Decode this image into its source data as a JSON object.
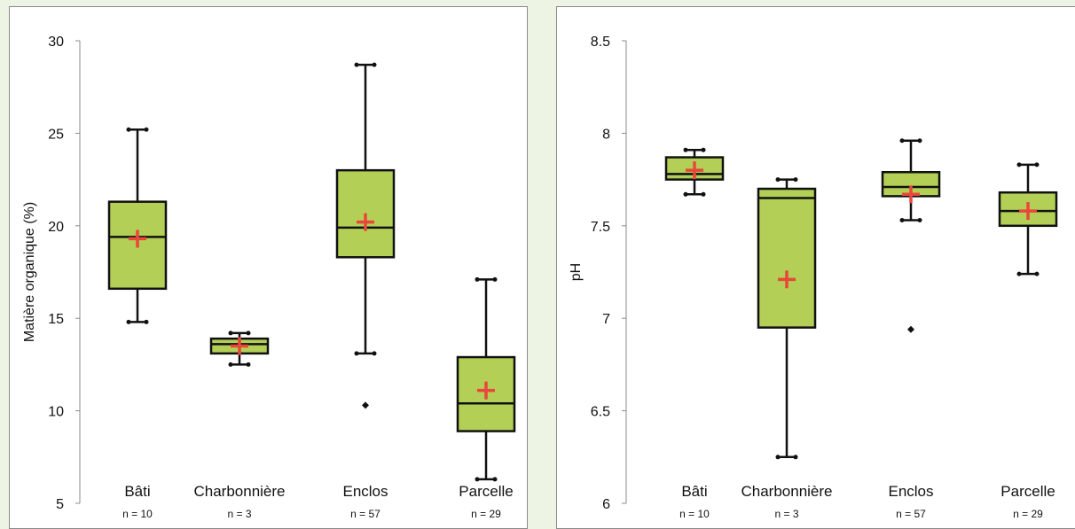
{
  "chart_data": [
    {
      "type": "box",
      "ylabel": "Matière organique (%)",
      "ylim": [
        5,
        30
      ],
      "yticks": [
        5,
        10,
        15,
        20,
        25,
        30
      ],
      "categories": [
        "Bâti",
        "Charbonnière",
        "Enclos",
        "Parcelle"
      ],
      "counts": [
        "n = 10",
        "n = 3",
        "n = 57",
        "n = 29"
      ],
      "boxes": [
        {
          "min": 14.8,
          "q1": 16.6,
          "median": 19.4,
          "q3": 21.3,
          "max": 25.2,
          "mean": 19.3,
          "outliers": []
        },
        {
          "min": 12.5,
          "q1": 13.1,
          "median": 13.6,
          "q3": 13.9,
          "max": 14.2,
          "mean": 13.5,
          "outliers": []
        },
        {
          "min": 13.1,
          "q1": 18.3,
          "median": 19.9,
          "q3": 23.0,
          "max": 28.7,
          "mean": 20.2,
          "outliers": [
            10.3
          ]
        },
        {
          "min": 6.3,
          "q1": 8.9,
          "median": 10.4,
          "q3": 12.9,
          "max": 17.1,
          "mean": 11.1,
          "outliers": []
        }
      ]
    },
    {
      "type": "box",
      "ylabel": "pH",
      "ylim": [
        6,
        8.5
      ],
      "yticks": [
        "6",
        "6.5",
        "7",
        "7.5",
        "8",
        "8.5"
      ],
      "categories": [
        "Bâti",
        "Charbonnière",
        "Enclos",
        "Parcelle"
      ],
      "counts": [
        "n = 10",
        "n = 3",
        "n = 57",
        "n = 29"
      ],
      "boxes": [
        {
          "min": 7.67,
          "q1": 7.75,
          "median": 7.78,
          "q3": 7.87,
          "max": 7.91,
          "mean": 7.8,
          "outliers": []
        },
        {
          "min": 6.25,
          "q1": 6.95,
          "median": 7.65,
          "q3": 7.7,
          "max": 7.75,
          "mean": 7.21,
          "outliers": []
        },
        {
          "min": 7.53,
          "q1": 7.66,
          "median": 7.71,
          "q3": 7.79,
          "max": 7.96,
          "mean": 7.67,
          "outliers": [
            6.94
          ]
        },
        {
          "min": 7.24,
          "q1": 7.5,
          "median": 7.58,
          "q3": 7.68,
          "max": 7.83,
          "mean": 7.58,
          "outliers": []
        }
      ]
    }
  ],
  "colors": {
    "box_fill": "#b3cf56",
    "box_stroke": "#111111",
    "mean_marker": "#e8473a",
    "background": "#eef4e3"
  }
}
